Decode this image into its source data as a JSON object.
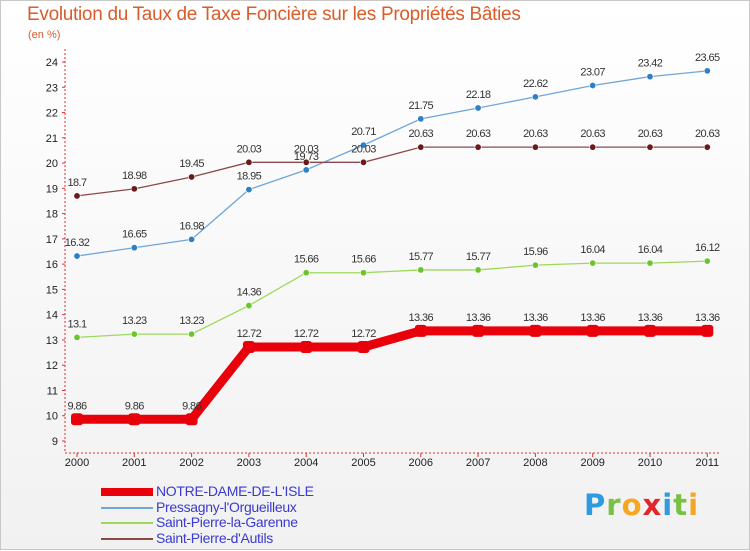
{
  "title": "Evolution du Taux de Taxe Foncière sur les Propriétés Bâties",
  "unit_label": "(en %)",
  "logo": {
    "text": "Proxiti",
    "letters": [
      {
        "ch": "P",
        "color": "#2e9be0"
      },
      {
        "ch": "r",
        "color": "#79c043"
      },
      {
        "ch": "o",
        "color": "#f5a623"
      },
      {
        "ch": "x",
        "color": "#e2242b"
      },
      {
        "ch": "i",
        "color": "#2e9be0"
      },
      {
        "ch": "t",
        "color": "#79c043"
      },
      {
        "ch": "i",
        "color": "#f5a623"
      }
    ]
  },
  "chart_data": {
    "type": "line",
    "title": "Evolution du Taux de Taxe Foncière sur les Propriétés Bâties",
    "ylabel": "(en %)",
    "xlabel": "",
    "categories": [
      "2000",
      "2001",
      "2002",
      "2003",
      "2004",
      "2005",
      "2006",
      "2007",
      "2008",
      "2009",
      "2010",
      "2011"
    ],
    "ylim": [
      9,
      24
    ],
    "yticks": [
      9,
      10,
      11,
      12,
      13,
      14,
      15,
      16,
      17,
      18,
      19,
      20,
      21,
      22,
      23,
      24
    ],
    "grid": false,
    "legend_position": "bottom-left",
    "series": [
      {
        "name": "NOTRE-DAME-DE-L'ISLE",
        "color": "#e8000b",
        "emphasis": true,
        "values": [
          9.86,
          9.86,
          9.86,
          12.72,
          12.72,
          12.72,
          13.36,
          13.36,
          13.36,
          13.36,
          13.36,
          13.36
        ],
        "labels": [
          "9.86",
          "9.86",
          "9.86",
          "12.72",
          "12.72",
          "12.72",
          "13.36",
          "13.36",
          "13.36",
          "13.36",
          "13.36",
          "13.36"
        ]
      },
      {
        "name": "Pressagny-l'Orgueilleux",
        "color": "#6fa6d9",
        "marker": "#2f7fc4",
        "values": [
          16.32,
          16.65,
          16.98,
          18.95,
          19.73,
          20.71,
          21.75,
          22.18,
          22.62,
          23.07,
          23.42,
          23.65
        ],
        "labels": [
          "16.32",
          "16.65",
          "16.98",
          "18.95",
          "19.73",
          "20.71",
          "21.75",
          "22.18",
          "22.62",
          "23.07",
          "23.42",
          "23.65"
        ]
      },
      {
        "name": "Saint-Pierre-la-Garenne",
        "color": "#9ed85a",
        "marker": "#6cc42d",
        "values": [
          13.1,
          13.23,
          13.23,
          14.36,
          15.66,
          15.66,
          15.77,
          15.77,
          15.96,
          16.04,
          16.04,
          16.12
        ],
        "labels": [
          "13.1",
          "13.23",
          "13.23",
          "14.36",
          "15.66",
          "15.66",
          "15.77",
          "15.77",
          "15.96",
          "16.04",
          "16.04",
          "16.12"
        ]
      },
      {
        "name": "Saint-Pierre-d'Autils",
        "color": "#8b4a4a",
        "marker": "#6a1a1a",
        "values": [
          18.7,
          18.98,
          19.45,
          20.03,
          20.03,
          20.03,
          20.63,
          20.63,
          20.63,
          20.63,
          20.63,
          20.63
        ],
        "labels": [
          "18.7",
          "18.98",
          "19.45",
          "20.03",
          "20.03",
          "20.03",
          "20.63",
          "20.63",
          "20.63",
          "20.63",
          "20.63",
          "20.63"
        ]
      }
    ]
  }
}
